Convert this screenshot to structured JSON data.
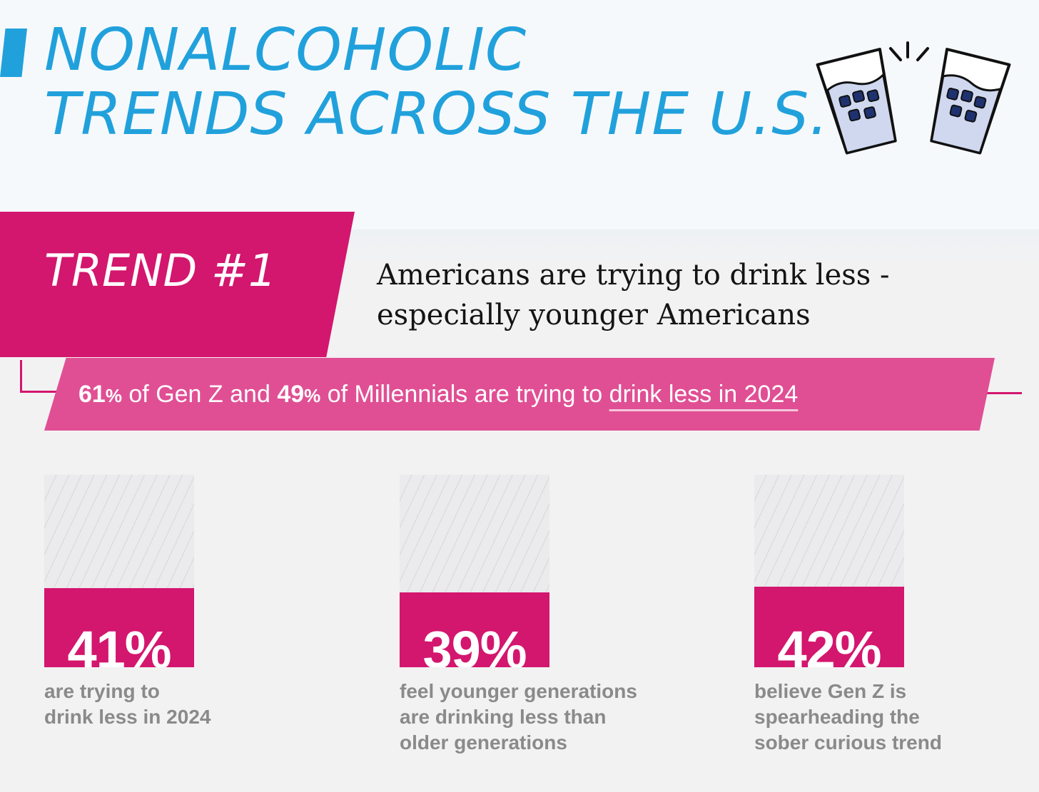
{
  "header": {
    "title_lines": [
      "NONALCOHOLIC",
      "TRENDS ACROSS THE U.S."
    ],
    "icon": "cheers-glasses-icon"
  },
  "trend": {
    "label": "TREND #1",
    "subtitle_lines": [
      "Americans are trying to drink less -",
      "especially younger Americans"
    ]
  },
  "banner": {
    "genz_value": "61",
    "text_1": " of Gen Z and ",
    "millennials_value": "49",
    "text_2": " of Millennials are trying to ",
    "underlined_text": "drink less in 2024",
    "percent_sign": "%"
  },
  "colors": {
    "title_blue": "#21a1dc",
    "magenta": "#d3166e",
    "banner_pink": "#e04f94",
    "caption_gray": "#8a8a8a"
  },
  "chart_data": {
    "type": "bar",
    "categories": [
      "are trying to drink less in 2024",
      "feel younger generations are drinking less than older generations",
      "believe Gen Z is spearheading the sober curious trend"
    ],
    "values": [
      41,
      39,
      42
    ],
    "ylim": [
      0,
      100
    ],
    "data_labels": [
      "41%",
      "39%",
      "42%"
    ],
    "captions": [
      [
        "are trying to",
        "drink less in 2024"
      ],
      [
        "feel younger generations",
        "are drinking less than",
        "older generations"
      ],
      [
        "believe Gen Z is",
        "spearheading the",
        "sober curious trend"
      ]
    ]
  }
}
